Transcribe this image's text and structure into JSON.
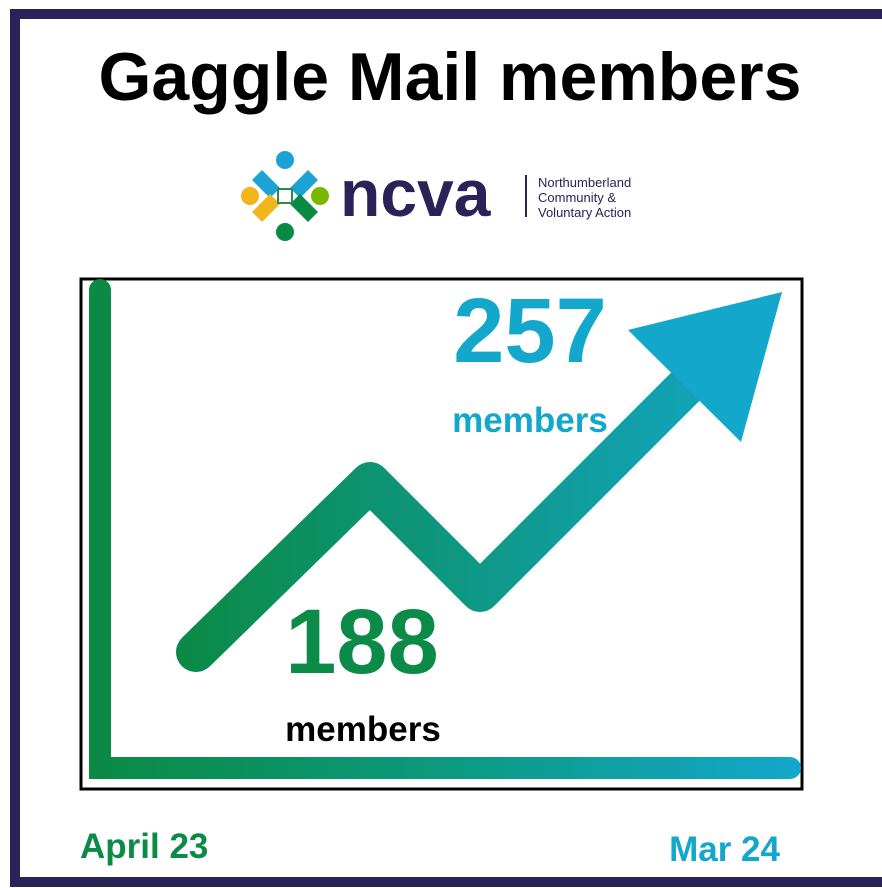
{
  "title": "Gaggle Mail members",
  "logo": {
    "name": "ncva",
    "tagline": [
      "Northumberland",
      "Community &",
      "Voluntary Action"
    ]
  },
  "start": {
    "value": 188,
    "unit": "members",
    "date": "April 23"
  },
  "end": {
    "value": 257,
    "unit": "members",
    "date": "Mar 24"
  }
}
